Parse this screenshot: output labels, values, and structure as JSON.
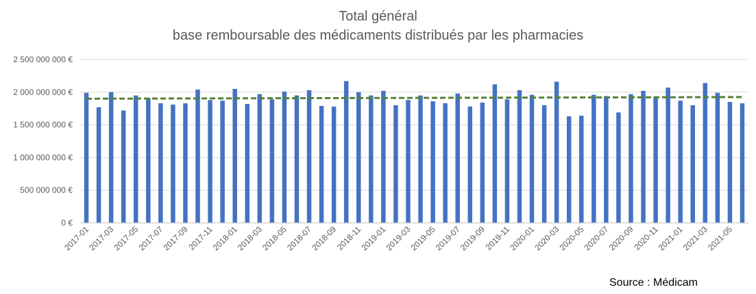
{
  "chart_data": {
    "type": "bar",
    "title": "Total général",
    "subtitle": "base remboursable des médicaments distribués par les pharmacies",
    "source": "Source : Médicam",
    "ylim": [
      0,
      2500000000
    ],
    "y_ticks": [
      {
        "value": 0,
        "label": "0 €"
      },
      {
        "value": 500000000,
        "label": "500 000 000 €"
      },
      {
        "value": 1000000000,
        "label": "1 000 000 000 €"
      },
      {
        "value": 1500000000,
        "label": "1 500 000 000 €"
      },
      {
        "value": 2000000000,
        "label": "2 000 000 000 €"
      },
      {
        "value": 2500000000,
        "label": "2 500 000 000 €"
      }
    ],
    "categories": [
      "2017-01",
      "2017-02",
      "2017-03",
      "2017-04",
      "2017-05",
      "2017-06",
      "2017-07",
      "2017-08",
      "2017-09",
      "2017-10",
      "2017-11",
      "2017-12",
      "2018-01",
      "2018-02",
      "2018-03",
      "2018-04",
      "2018-05",
      "2018-06",
      "2018-07",
      "2018-08",
      "2018-09",
      "2018-10",
      "2018-11",
      "2018-12",
      "2019-01",
      "2019-02",
      "2019-03",
      "2019-04",
      "2019-05",
      "2019-06",
      "2019-07",
      "2019-08",
      "2019-09",
      "2019-10",
      "2019-11",
      "2019-12",
      "2020-01",
      "2020-02",
      "2020-03",
      "2020-04",
      "2020-05",
      "2020-06",
      "2020-07",
      "2020-08",
      "2020-09",
      "2020-10",
      "2020-11",
      "2020-12",
      "2021-01",
      "2021-02",
      "2021-03",
      "2021-04",
      "2021-05",
      "2021-06"
    ],
    "x_tick_labels": [
      "2017-01",
      "2017-03",
      "2017-05",
      "2017-07",
      "2017-09",
      "2017-11",
      "2018-01",
      "2018-03",
      "2018-05",
      "2018-07",
      "2018-09",
      "2018-11",
      "2019-01",
      "2019-03",
      "2019-05",
      "2019-07",
      "2019-09",
      "2019-11",
      "2020-01",
      "2020-03",
      "2020-05",
      "2020-07",
      "2020-09",
      "2020-11",
      "2021-01",
      "2021-03",
      "2021-05"
    ],
    "series": [
      {
        "type": "bar",
        "values": [
          1990000000,
          1770000000,
          2000000000,
          1720000000,
          1950000000,
          1910000000,
          1830000000,
          1810000000,
          1830000000,
          2040000000,
          1880000000,
          1870000000,
          2050000000,
          1820000000,
          1970000000,
          1890000000,
          2010000000,
          1950000000,
          2030000000,
          1790000000,
          1780000000,
          2170000000,
          2000000000,
          1950000000,
          2020000000,
          1800000000,
          1880000000,
          1950000000,
          1860000000,
          1830000000,
          1980000000,
          1780000000,
          1840000000,
          2120000000,
          1890000000,
          2030000000,
          1960000000,
          1800000000,
          2160000000,
          1630000000,
          1640000000,
          1960000000,
          1940000000,
          1690000000,
          1970000000,
          2020000000,
          1930000000,
          2070000000,
          1870000000,
          1800000000,
          2140000000,
          1990000000,
          1850000000,
          1830000000
        ]
      },
      {
        "type": "trendline",
        "start": 1900000000,
        "end": 1925000000
      }
    ],
    "colors": {
      "bar": "#4472c4",
      "trend": "#548235",
      "grid": "#d9d9d9"
    },
    "grid": true,
    "legend": "none"
  }
}
